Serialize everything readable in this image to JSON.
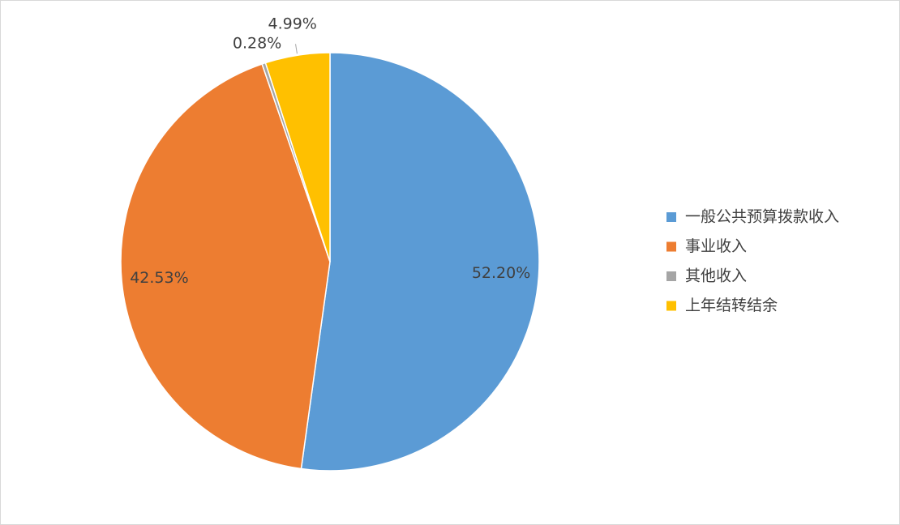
{
  "chart_data": {
    "type": "pie",
    "categories": [
      "一般公共预算拨款收入",
      "事业收入",
      "其他收入",
      "上年结转结余"
    ],
    "values": [
      52.2,
      42.53,
      0.28,
      4.99
    ],
    "value_labels": [
      "52.20%",
      "42.53%",
      "0.28%",
      "4.99%"
    ],
    "colors": [
      "#5b9bd5",
      "#ed7d31",
      "#a5a5a5",
      "#ffc000"
    ],
    "legend": "right"
  }
}
